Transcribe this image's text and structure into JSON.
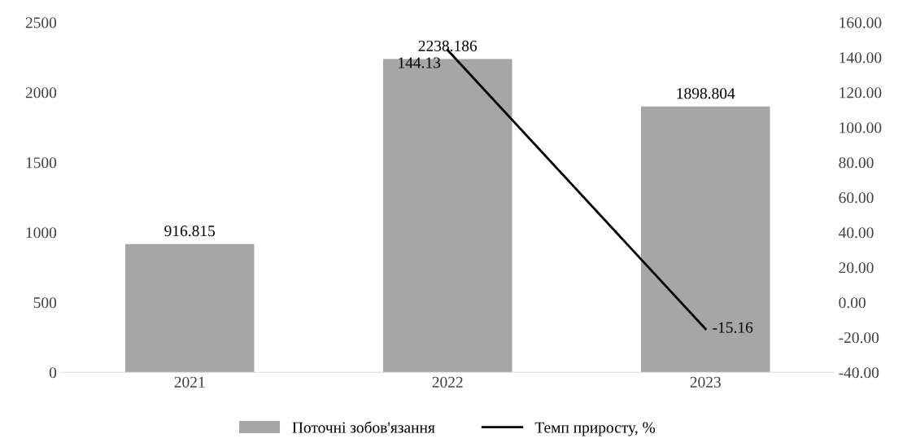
{
  "chart_data": {
    "type": "bar",
    "categories": [
      "2021",
      "2022",
      "2023"
    ],
    "series": [
      {
        "name": "Поточні зобов'язання",
        "color": "#a6a6a6",
        "values": [
          916.815,
          2238.186,
          1898.804
        ]
      },
      {
        "name": "Темп приросту, %",
        "type": "line",
        "axis": "y2",
        "color": "#000000",
        "values": [
          null,
          144.13,
          -15.16
        ]
      }
    ],
    "ylim": [
      0,
      2500
    ],
    "yticks": [
      0,
      500,
      1000,
      1500,
      2000,
      2500
    ],
    "y2lim": [
      -40,
      160
    ],
    "y2ticks": [
      {
        "value": -40,
        "label": "-40.00"
      },
      {
        "value": -20,
        "label": "-20.00"
      },
      {
        "value": 0,
        "label": "0.00"
      },
      {
        "value": 20,
        "label": "20.00"
      },
      {
        "value": 40,
        "label": "40.00"
      },
      {
        "value": 60,
        "label": "60.00"
      },
      {
        "value": 80,
        "label": "80.00"
      },
      {
        "value": 100,
        "label": "100.00"
      },
      {
        "value": 120,
        "label": "120.00"
      },
      {
        "value": 140,
        "label": "140.00"
      },
      {
        "value": 160,
        "label": "160.00"
      }
    ],
    "data_labels": true,
    "legend": "bottom",
    "grid": false,
    "marker": "none",
    "line_style": "solid"
  }
}
